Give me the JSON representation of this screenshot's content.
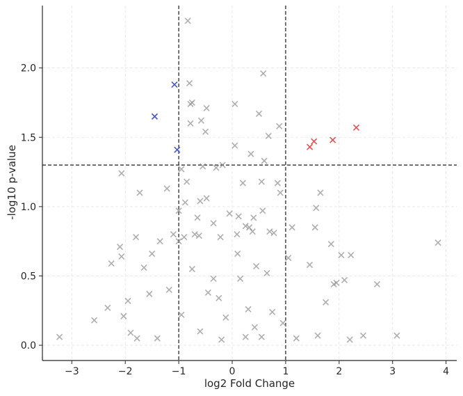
{
  "chart_data": {
    "type": "scatter",
    "title": "",
    "xlabel": "log2 Fold Change",
    "ylabel": "-log10 p-value",
    "xlim": [
      -3.55,
      4.2
    ],
    "ylim": [
      -0.11,
      2.45
    ],
    "xticks": [
      -3,
      -2,
      -1,
      0,
      1,
      2,
      3,
      4
    ],
    "yticks": [
      0.0,
      0.5,
      1.0,
      1.5,
      2.0
    ],
    "xtick_labels": [
      "−3",
      "−2",
      "−1",
      "0",
      "1",
      "2",
      "3",
      "4"
    ],
    "ytick_labels": [
      "0.0",
      "0.5",
      "1.0",
      "1.5",
      "2.0"
    ],
    "grid": true,
    "marker": "x",
    "thresholds": {
      "x": [
        -1,
        1
      ],
      "y": 1.3
    },
    "colors": {
      "not_significant": "#8c8c8c",
      "up": "#e05252",
      "down": "#4a57c8",
      "threshold_line": "#1a1a1a",
      "axis": "#262626"
    },
    "series": [
      {
        "category": "down",
        "x": [
          -1.45,
          -1.08,
          -1.03
        ],
        "y": [
          1.65,
          1.88,
          1.41
        ]
      },
      {
        "category": "up",
        "x": [
          1.45,
          1.53,
          1.88,
          2.32
        ],
        "y": [
          1.43,
          1.47,
          1.48,
          1.57
        ]
      },
      {
        "category": "not_significant",
        "x": [
          -0.83,
          0.58,
          -0.8,
          -0.75,
          -0.78,
          -0.48,
          0.05,
          0.5,
          -0.58,
          -0.78,
          0.88,
          -0.5,
          0.68,
          0.05,
          0.35,
          0.6,
          3.85,
          -2.07,
          -0.95,
          -0.55,
          -0.85,
          -0.3,
          -0.18,
          0.2,
          0.55,
          0.85,
          0.9,
          -1.73,
          -0.6,
          -0.88,
          -0.48,
          -1.22,
          -1.0,
          -0.05,
          1.65,
          0.12,
          0.4,
          0.57,
          1.57,
          1.55,
          -0.35,
          -0.65,
          0.38,
          -1.35,
          0.7,
          -1.8,
          -0.62,
          0.09,
          0.25,
          -0.22,
          0.32,
          0.78,
          1.12,
          -1.1,
          -0.7,
          -0.9,
          2.22,
          1.85,
          2.04,
          2.71,
          -2.33,
          -2.07,
          -1.5,
          -1.0,
          3.08,
          -2.58,
          -2.26,
          -2.03,
          -1.9,
          -1.78,
          -1.4,
          -0.6,
          -0.2,
          0.25,
          0.55,
          1.2,
          1.6,
          2.2,
          2.45,
          -3.23,
          -1.18,
          0.45,
          0.15,
          -0.45,
          -0.75,
          0.65,
          1.05,
          -1.55,
          1.95,
          -0.25,
          -1.65,
          -0.35,
          0.1,
          1.9,
          2.1,
          1.45,
          -2.1,
          -1.95,
          0.75,
          1.75,
          -0.12,
          0.3,
          0.95,
          -0.95,
          0.42
        ],
        "y": [
          2.34,
          1.96,
          1.89,
          1.75,
          1.74,
          1.71,
          1.74,
          1.67,
          1.62,
          1.6,
          1.58,
          1.54,
          1.51,
          1.44,
          1.38,
          1.33,
          0.74,
          1.24,
          1.27,
          1.29,
          1.18,
          1.28,
          1.3,
          1.17,
          1.18,
          1.17,
          1.1,
          1.1,
          1.04,
          1.03,
          1.06,
          1.13,
          0.97,
          0.95,
          1.1,
          0.93,
          0.92,
          0.97,
          0.99,
          0.85,
          0.88,
          0.92,
          0.82,
          0.75,
          0.82,
          0.78,
          0.79,
          0.8,
          0.86,
          0.78,
          0.85,
          0.81,
          0.85,
          0.8,
          0.8,
          0.78,
          0.65,
          0.73,
          0.65,
          0.44,
          0.27,
          0.64,
          0.66,
          0.75,
          0.07,
          0.18,
          0.59,
          0.21,
          0.09,
          0.05,
          0.05,
          0.1,
          0.04,
          0.06,
          0.06,
          0.05,
          0.07,
          0.04,
          0.07,
          0.06,
          0.4,
          0.57,
          0.48,
          0.38,
          0.55,
          0.52,
          0.63,
          0.37,
          0.45,
          0.34,
          0.56,
          0.48,
          0.66,
          0.44,
          0.47,
          0.58,
          0.71,
          0.32,
          0.24,
          0.31,
          0.2,
          0.26,
          0.16,
          0.22,
          0.13
        ]
      }
    ],
    "note_cluster": "dense low-significance cloud near x=0, y<0.6"
  }
}
